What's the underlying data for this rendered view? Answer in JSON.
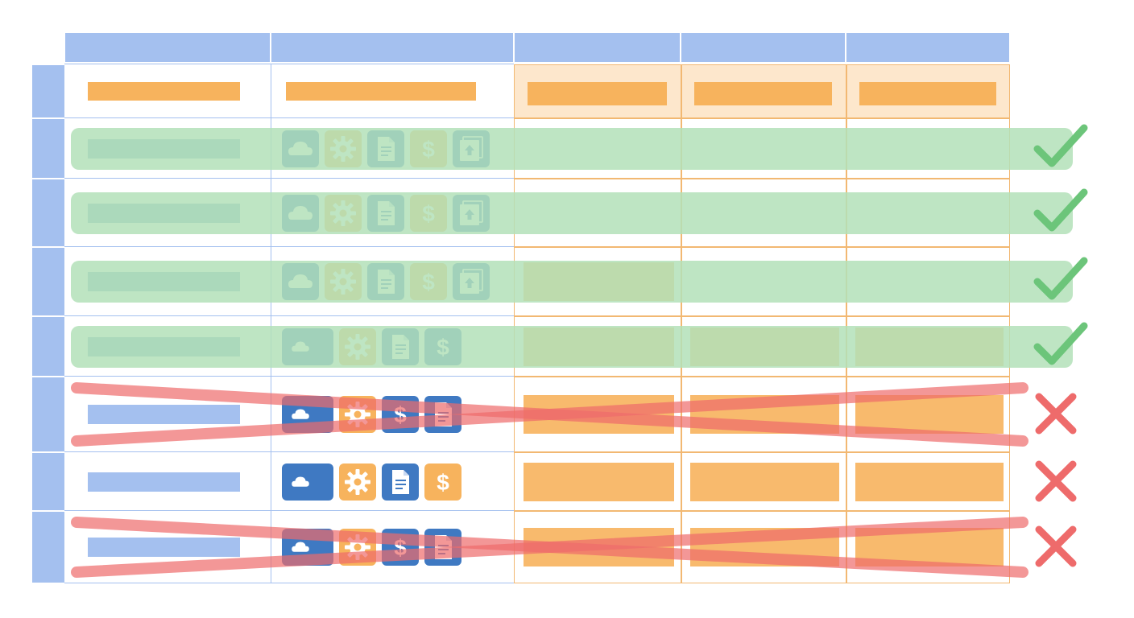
{
  "colors": {
    "header_blue": "#a4c0ef",
    "row_label_blue": "#a4c0ef",
    "grid_line_blue": "#a4c0ef",
    "highlight_orange_fill": "#fde7cc",
    "highlight_orange_border": "#f2b872",
    "placeholder_orange": "#f7b35d",
    "placeholder_teal": "#7fb0c6",
    "placeholder_blue": "#a4c0ef",
    "pass_green_band": "#b3e0b8",
    "pass_check": "#6cc57a",
    "fail_cross": "#ee6b6b",
    "icon_blue": "#3f79c2",
    "icon_orange": "#f7b35d"
  },
  "grid": {
    "header_cells": 5,
    "highlighted_columns": 3,
    "rows": [
      {
        "status": "pass",
        "icons": [
          "cloud-icon",
          "gear-icon",
          "document-icon",
          "dollar-icon",
          "upload-icon"
        ],
        "cells": [
          false,
          false,
          false
        ],
        "faded_icons": false,
        "struck": false
      },
      {
        "status": "pass",
        "icons": [
          "cloud-icon",
          "gear-icon",
          "document-icon",
          "dollar-icon",
          "upload-icon"
        ],
        "cells": [
          false,
          false,
          false
        ],
        "faded_icons": false,
        "struck": false
      },
      {
        "status": "pass",
        "icons": [
          "cloud-icon",
          "gear-icon",
          "document-icon",
          "dollar-icon",
          "upload-icon"
        ],
        "cells": [
          true,
          false,
          false
        ],
        "faded_icons": false,
        "struck": false
      },
      {
        "status": "pass",
        "icons": [
          "cloud-icon",
          "gear-icon",
          "document-icon",
          "dollar-icon"
        ],
        "cells": [
          true,
          true,
          true
        ],
        "faded_icons": true,
        "struck": false
      },
      {
        "status": "fail",
        "icons": [
          "cloud-icon",
          "gear-icon",
          "dollar-icon",
          "document-icon"
        ],
        "cells": [
          true,
          true,
          true
        ],
        "faded_icons": true,
        "struck": true
      },
      {
        "status": "fail",
        "icons": [
          "cloud-icon",
          "gear-icon",
          "document-icon",
          "dollar-icon"
        ],
        "cells": [
          true,
          true,
          true
        ],
        "faded_icons": false,
        "struck": false
      },
      {
        "status": "fail",
        "icons": [
          "cloud-icon",
          "gear-icon",
          "dollar-icon",
          "document-icon"
        ],
        "cells": [
          true,
          true,
          true
        ],
        "faded_icons": true,
        "struck": true
      }
    ]
  }
}
